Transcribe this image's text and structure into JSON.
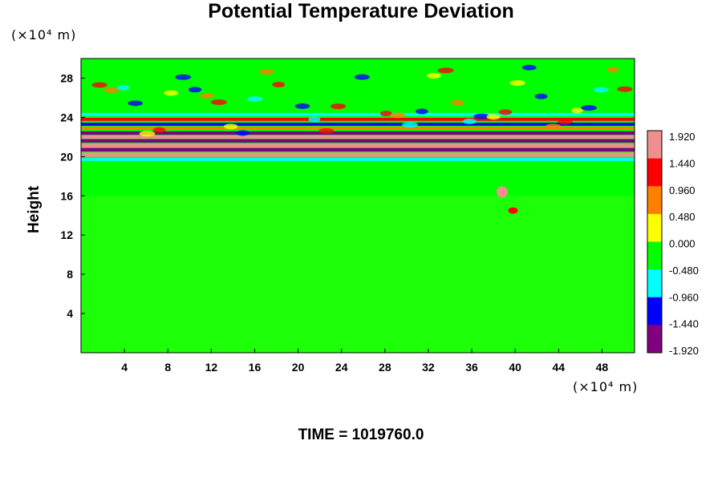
{
  "chart_data": {
    "type": "heatmap",
    "title": "Potential Temperature Deviation",
    "xlabel": "",
    "ylabel": "Height",
    "x_unit": "(×10⁴ m)",
    "y_unit": "(×10⁴ m)",
    "x_ticks": [
      "4",
      "8",
      "12",
      "16",
      "20",
      "24",
      "28",
      "32",
      "36",
      "40",
      "44",
      "48"
    ],
    "y_ticks": [
      "4",
      "8",
      "12",
      "16",
      "20",
      "24",
      "28"
    ],
    "xlim": [
      0,
      51
    ],
    "ylim": [
      0,
      30
    ],
    "colorbar": {
      "labels": [
        "1.920",
        "1.440",
        "0.960",
        "0.480",
        "0.000",
        "-0.480",
        "-0.960",
        "-1.440",
        "-1.920"
      ],
      "range": [
        -1.92,
        1.92
      ],
      "colors": [
        "#f08f8f",
        "#ff0000",
        "#ff7f00",
        "#ffff00",
        "#00ff00",
        "#00ffff",
        "#0000ff",
        "#800080"
      ]
    },
    "annotation": "TIME = 1019760.0"
  }
}
